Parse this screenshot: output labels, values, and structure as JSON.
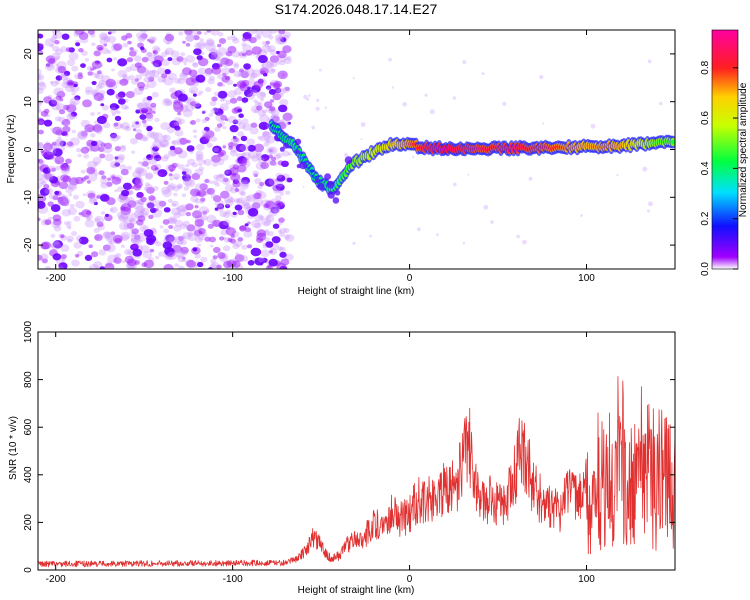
{
  "title": "S174.2026.048.17.14.E27",
  "chart_data": [
    {
      "type": "heatmap",
      "title": "S174.2026.048.17.14.E27",
      "xlabel": "Height of straight line (km)",
      "ylabel": "Frequency (Hz)",
      "xlim": [
        -210,
        150
      ],
      "ylim": [
        -25,
        25
      ],
      "x_ticks": [
        -200,
        -100,
        0,
        100
      ],
      "y_ticks": [
        -20,
        -10,
        0,
        10,
        20
      ],
      "noise_region_x": [
        -210,
        -73
      ],
      "ridge": {
        "x": [
          -78,
          -72,
          -66,
          -60,
          -55,
          -50,
          -46,
          -42,
          -38,
          -34,
          -30,
          -25,
          -20,
          -15,
          -10,
          -5,
          0,
          10,
          20,
          30,
          40,
          50,
          60,
          70,
          80,
          90,
          100,
          110,
          120,
          130,
          140,
          150
        ],
        "freq": [
          5,
          3,
          1,
          -2,
          -5,
          -7,
          -8,
          -8,
          -6,
          -4,
          -2.5,
          -1.5,
          -0.5,
          0.5,
          1,
          1.2,
          1,
          0.3,
          0.3,
          0.3,
          0.3,
          0.2,
          0.3,
          0.4,
          0.4,
          0.5,
          0.6,
          0.6,
          0.8,
          1.1,
          1.3,
          1.5
        ],
        "amplitude": [
          0.2,
          0.25,
          0.3,
          0.25,
          0.2,
          0.25,
          0.3,
          0.35,
          0.4,
          0.45,
          0.5,
          0.55,
          0.6,
          0.65,
          0.7,
          0.75,
          0.8,
          0.95,
          0.98,
          0.95,
          0.9,
          0.92,
          0.95,
          0.9,
          0.85,
          0.8,
          0.75,
          0.8,
          0.75,
          0.6,
          0.5,
          0.45
        ]
      },
      "colorbar": {
        "label": "Normalized spectral amplitude",
        "range": [
          0,
          0.95
        ],
        "ticks": [
          0.0,
          0.2,
          0.4,
          0.6,
          0.8
        ],
        "tick_labels": [
          "0.0",
          "0.2",
          "0.4",
          "0.6",
          "0.8"
        ]
      }
    },
    {
      "type": "line",
      "xlabel": "Height of straight line (km)",
      "ylabel": "SNR (10 * v/v)",
      "xlim": [
        -210,
        150
      ],
      "ylim": [
        0,
        1000
      ],
      "x_ticks": [
        -200,
        -100,
        0,
        100
      ],
      "y_ticks": [
        0,
        200,
        400,
        600,
        800,
        1000
      ],
      "color": "#e03030",
      "envelope": {
        "x": [
          -210,
          -70,
          -60,
          -55,
          -50,
          -45,
          -40,
          -35,
          -30,
          -25,
          -20,
          -15,
          -10,
          -5,
          0,
          5,
          10,
          15,
          20,
          25,
          30,
          33,
          35,
          38,
          40,
          45,
          50,
          55,
          60,
          63,
          65,
          70,
          75,
          80,
          85,
          90,
          95,
          100,
          105,
          110,
          115,
          120,
          125,
          130,
          135,
          140,
          145,
          150
        ],
        "snr": [
          25,
          30,
          80,
          160,
          120,
          60,
          70,
          130,
          160,
          170,
          230,
          220,
          300,
          250,
          270,
          360,
          340,
          360,
          430,
          400,
          520,
          650,
          560,
          390,
          350,
          350,
          340,
          350,
          480,
          610,
          560,
          420,
          330,
          310,
          290,
          390,
          350,
          430,
          420,
          500,
          540,
          700,
          520,
          480,
          550,
          530,
          500,
          450
        ]
      }
    }
  ]
}
